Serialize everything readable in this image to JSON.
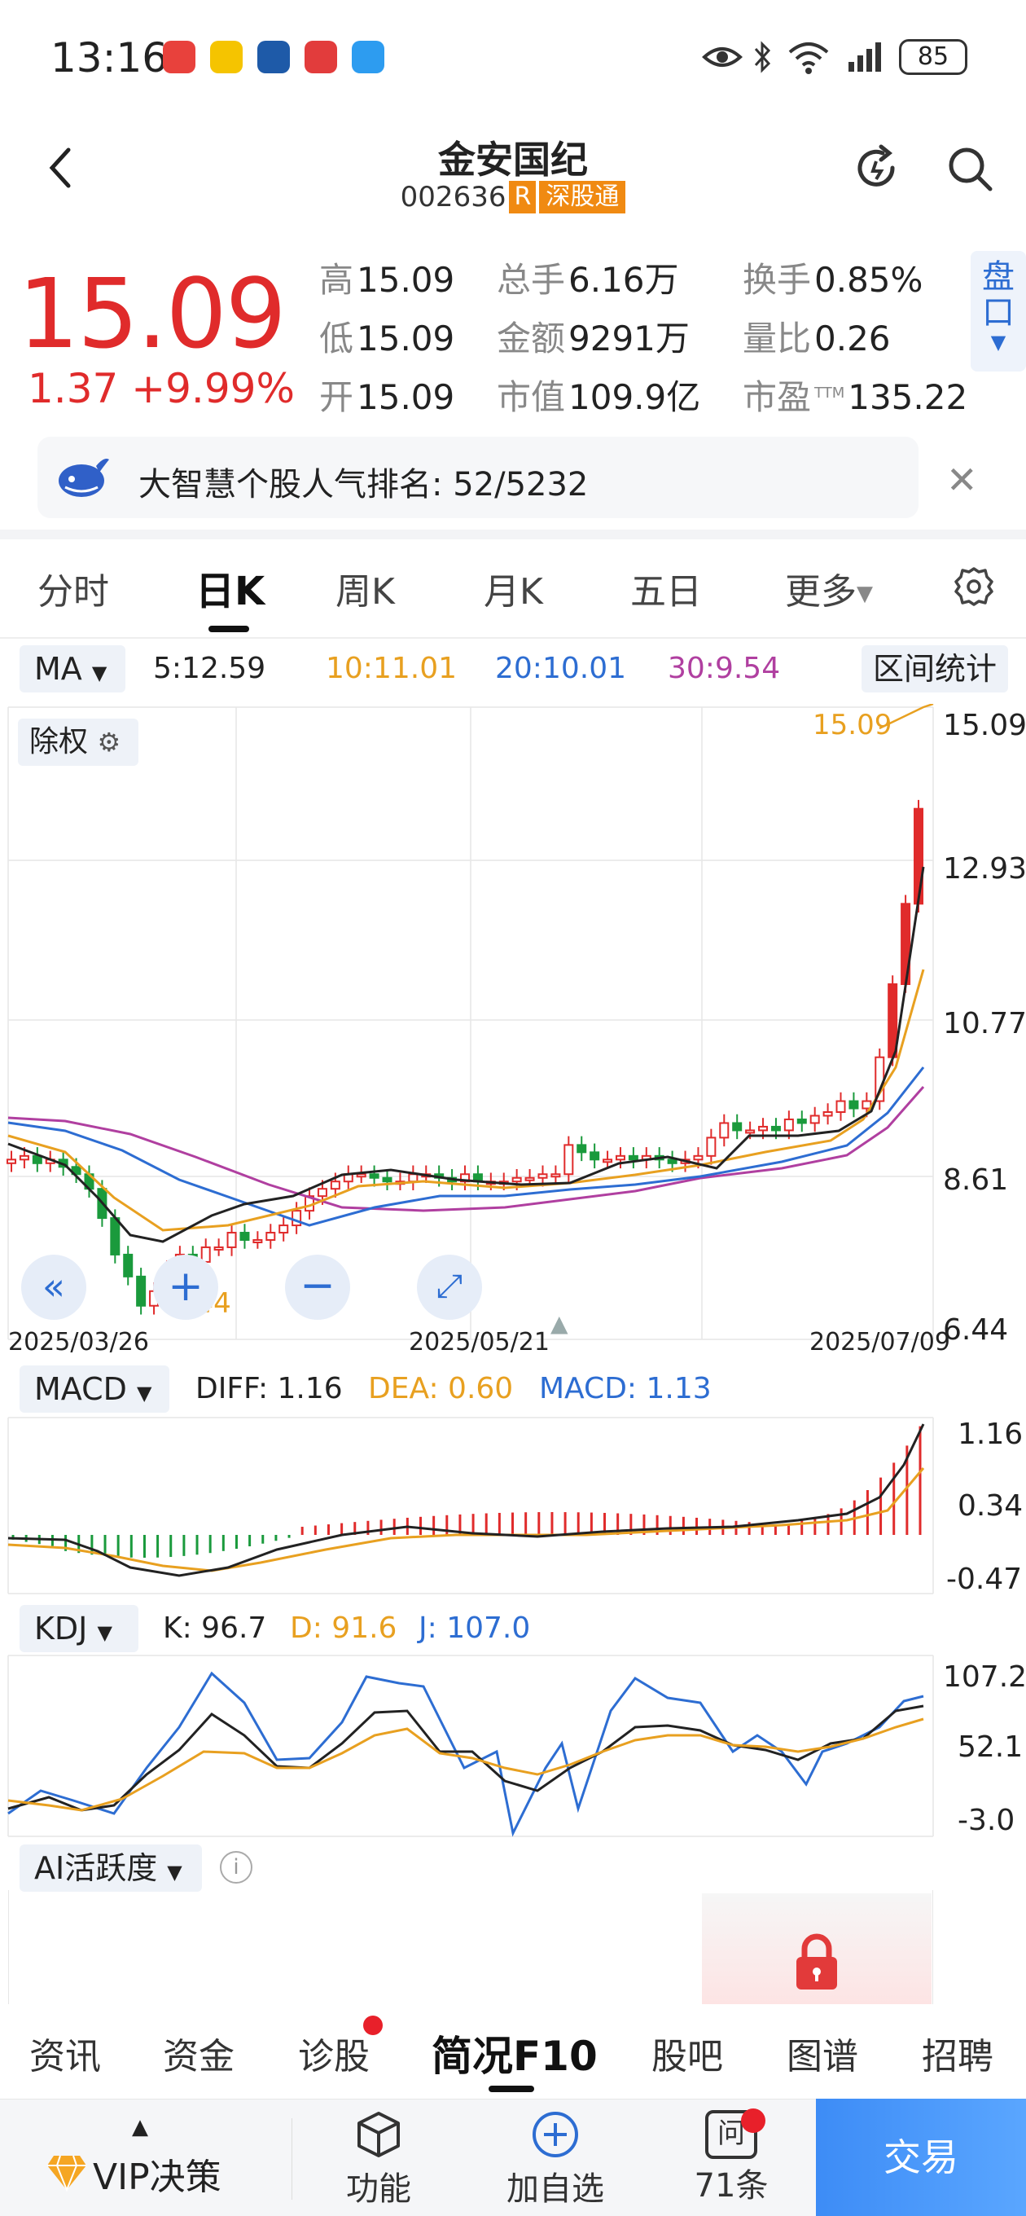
{
  "status_bar": {
    "time": "13:16",
    "battery": "85"
  },
  "header": {
    "title": "金安国纪",
    "code": "002636",
    "badge_r": "R",
    "badge_market": "深股通"
  },
  "quote": {
    "price": "15.09",
    "change": "1.37 +9.99%",
    "high_label": "高",
    "high": "15.09",
    "low_label": "低",
    "low": "15.09",
    "open_label": "开",
    "open": "15.09",
    "volume_label": "总手",
    "volume": "6.16万",
    "amount_label": "金额",
    "amount": "9291万",
    "mktcap_label": "市值",
    "mktcap": "109.9亿",
    "turnover_label": "换手",
    "turnover": "0.85%",
    "volratio_label": "量比",
    "volratio": "0.26",
    "pe_label": "市盈",
    "pe_sup": "TTM",
    "pe": "135.22",
    "pankou": "盘口"
  },
  "banner": {
    "text": "大智慧个股人气排名:  52/5232"
  },
  "ktabs": {
    "t0": "分时",
    "t1": "日K",
    "t2": "周K",
    "t3": "月K",
    "t4": "五日",
    "t5": "更多"
  },
  "ma": {
    "selector": "MA",
    "ma5": "5:12.59",
    "ma10": "10:11.01",
    "ma20": "20:10.01",
    "ma30": "30:9.54",
    "range_stat": "区间统计"
  },
  "main_chart": {
    "fq_label": "除权",
    "y_labels": [
      "15.09",
      "12.93",
      "10.77",
      "8.61",
      "6.44"
    ],
    "x_labels": [
      "2025/03/26",
      "2025/05/21",
      "2025/07/09"
    ],
    "max_label": "15.09",
    "min_label": "6.44"
  },
  "macd": {
    "selector": "MACD",
    "diff": "DIFF: 1.16",
    "dea": "DEA: 0.60",
    "macd": "MACD: 1.13",
    "y_labels": [
      "1.16",
      "0.34",
      "-0.47"
    ]
  },
  "kdj": {
    "selector": "KDJ",
    "k": "K: 96.7",
    "d": "D: 91.6",
    "j": "J: 107.0",
    "y_labels": [
      "107.2",
      "52.1",
      "-3.0"
    ]
  },
  "ai": {
    "selector": "AI活跃度"
  },
  "bottom_tabs": {
    "t0": "资讯",
    "t1": "资金",
    "t2": "诊股",
    "t3": "简况F10",
    "t4": "股吧",
    "t5": "图谱",
    "t6": "招聘"
  },
  "bottom_bar": {
    "vip": "VIP决策",
    "func": "功能",
    "add": "加自选",
    "ask_icon_text": "问",
    "ask": "71条",
    "trade": "交易"
  },
  "colors": {
    "up": "#e02b2b",
    "down": "#1a9a3c",
    "ma5": "#222222",
    "ma10": "#e8a020",
    "ma20": "#2d6dd2",
    "ma30": "#b03fa0",
    "accent": "#2d6dd2"
  },
  "chart_data": [
    {
      "type": "candlestick",
      "x_range": [
        "2025/03/26",
        "2025/07/09"
      ],
      "ylim": [
        6.44,
        15.09
      ],
      "high": 15.09,
      "low": 6.44,
      "series": [
        {
          "name": "MA5",
          "values": [
            12.59
          ]
        },
        {
          "name": "MA10",
          "values": [
            11.01
          ]
        },
        {
          "name": "MA20",
          "values": [
            10.01
          ]
        },
        {
          "name": "MA30",
          "values": [
            9.54
          ]
        }
      ]
    },
    {
      "type": "bar",
      "series": [
        {
          "name": "DIFF",
          "values": [
            1.16
          ]
        },
        {
          "name": "DEA",
          "values": [
            0.6
          ]
        },
        {
          "name": "MACD",
          "values": [
            1.13
          ]
        }
      ],
      "ylim": [
        -0.47,
        1.16
      ]
    },
    {
      "type": "line",
      "series": [
        {
          "name": "K",
          "values": [
            96.7
          ]
        },
        {
          "name": "D",
          "values": [
            91.6
          ]
        },
        {
          "name": "J",
          "values": [
            107.0
          ]
        }
      ],
      "ylim": [
        -3.0,
        107.2
      ]
    }
  ]
}
